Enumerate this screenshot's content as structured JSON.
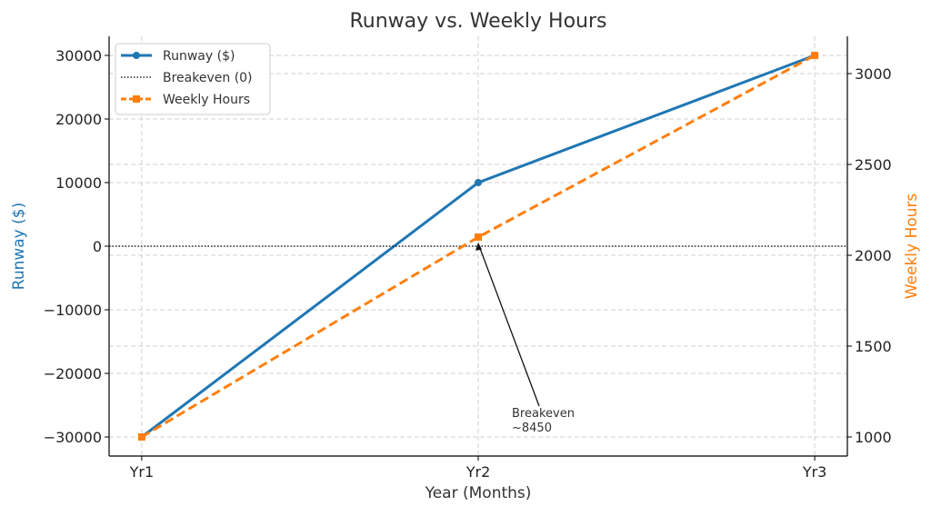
{
  "chart_data": {
    "type": "line",
    "title": "Runway vs. Weekly Hours",
    "xlabel": "Year (Months)",
    "ylabel": "Runway ($)",
    "y2label": "Weekly Hours",
    "categories": [
      "Yr1",
      "Yr2",
      "Yr3"
    ],
    "ylim": [
      -33000,
      33000
    ],
    "y2lim": [
      895,
      3205
    ],
    "yticks": [
      -30000,
      -20000,
      -10000,
      0,
      10000,
      20000,
      30000
    ],
    "y2ticks": [
      1000,
      1500,
      2000,
      2500,
      3000
    ],
    "grid": true,
    "legend_position": "top-left",
    "series": [
      {
        "name": "Runway ($)",
        "axis": "left",
        "values": [
          -30000,
          10000,
          30000
        ],
        "color": "#1f77b4",
        "style": "solid",
        "marker": "circle"
      },
      {
        "name": "Breakeven (0)",
        "axis": "left",
        "hline": 0,
        "color": "#000000",
        "style": "dotted"
      },
      {
        "name": "Weekly Hours",
        "axis": "right",
        "values": [
          1000,
          2100,
          3100
        ],
        "color": "#ff7f0e",
        "style": "dashed",
        "marker": "square"
      }
    ],
    "annotation": {
      "lines": [
        "Breakeven",
        "~8450"
      ],
      "target_category": "Yr2",
      "target_value": 600,
      "text_x": 1.1,
      "text_value": -26000
    }
  }
}
